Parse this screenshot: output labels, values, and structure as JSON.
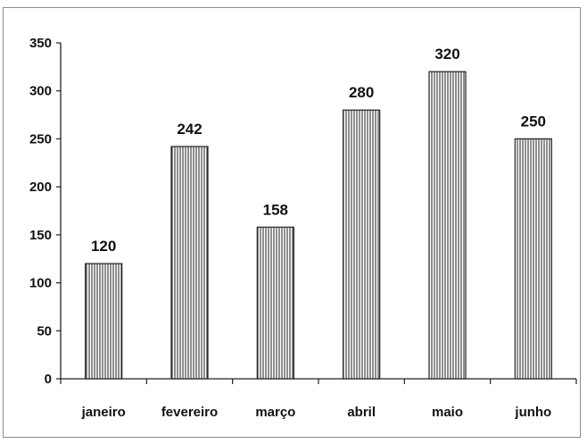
{
  "chart_data": {
    "type": "bar",
    "categories": [
      "janeiro",
      "fevereiro",
      "março",
      "abril",
      "maio",
      "junho"
    ],
    "values": [
      120,
      242,
      158,
      280,
      320,
      250
    ],
    "title": "",
    "xlabel": "",
    "ylabel": "",
    "ylim": [
      0,
      350
    ],
    "yticks": [
      0,
      50,
      100,
      150,
      200,
      250,
      300,
      350
    ],
    "grid": false,
    "legend": "none",
    "data_labels": true,
    "bar_fill": "vertical-hatch",
    "colors": {
      "bar_stroke": "#222222",
      "hatch_line": "#333333",
      "axis": "#222222",
      "frame": "#8a8a8a"
    }
  }
}
